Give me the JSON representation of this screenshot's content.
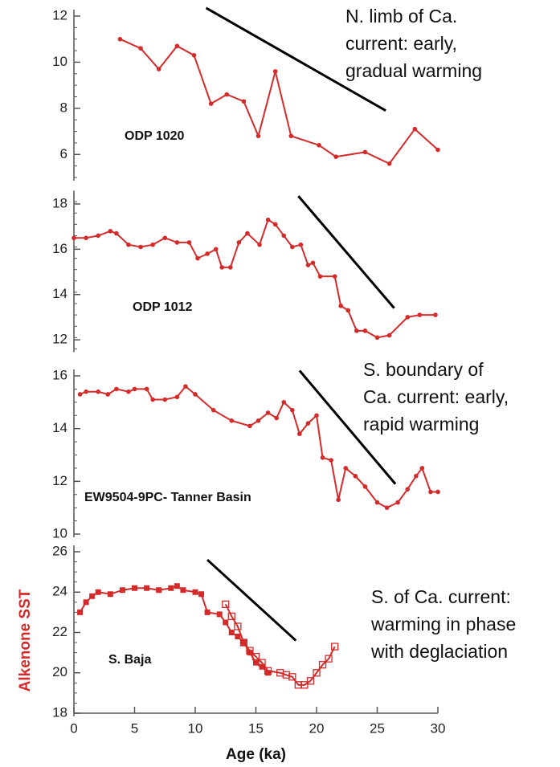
{
  "chart_data": [
    {
      "type": "line",
      "label": "ODP 1020",
      "annotation": [
        "N. limb of Ca.",
        "current: early,",
        "gradual warming"
      ],
      "xlim": [
        0,
        30
      ],
      "ylim": [
        5,
        12
      ],
      "yticks": [
        6,
        8,
        10,
        12
      ],
      "series": [
        {
          "color": "#d42a2a",
          "marker": "circle",
          "x": [
            3.8,
            5.5,
            7.0,
            8.5,
            9.9,
            11.3,
            12.6,
            14.0,
            15.2,
            16.6,
            17.9,
            20.2,
            21.6,
            24.0,
            26.0,
            28.1,
            30
          ],
          "values": [
            11.0,
            10.6,
            9.7,
            10.7,
            10.3,
            8.2,
            8.6,
            8.3,
            6.8,
            9.6,
            6.8,
            6.4,
            5.9,
            6.1,
            5.6,
            7.1,
            6.2
          ]
        }
      ],
      "trend_line": {
        "color": "#000000",
        "x": [
          10.9,
          25.7
        ],
        "values": [
          12.35,
          7.9
        ]
      }
    },
    {
      "type": "line",
      "label": "ODP 1012",
      "xlim": [
        0,
        30
      ],
      "ylim": [
        11.6,
        18.3
      ],
      "yticks": [
        12,
        14,
        16,
        18
      ],
      "series": [
        {
          "color": "#d42a2a",
          "marker": "circle",
          "x": [
            0,
            1,
            2,
            3,
            3.5,
            4.5,
            5.5,
            6.5,
            7.5,
            8.5,
            9.5,
            10.2,
            11,
            11.7,
            12.2,
            12.9,
            13.6,
            14.3,
            15.3,
            16,
            16.6,
            17.3,
            18,
            18.7,
            19.3,
            19.7,
            20.3,
            21.5,
            22,
            22.6,
            23.3,
            24,
            25,
            26,
            27.5,
            28.5,
            29.8
          ],
          "values": [
            16.5,
            16.5,
            16.6,
            16.8,
            16.7,
            16.2,
            16.1,
            16.2,
            16.5,
            16.3,
            16.3,
            15.6,
            15.8,
            16.0,
            15.2,
            15.2,
            16.3,
            16.7,
            16.2,
            17.3,
            17.1,
            16.6,
            16.1,
            16.2,
            15.3,
            15.4,
            14.8,
            14.8,
            13.5,
            13.3,
            12.4,
            12.4,
            12.1,
            12.2,
            13.0,
            13.1,
            13.1
          ]
        }
      ],
      "trend_line": {
        "color": "#000000",
        "x": [
          18.5,
          26.4
        ],
        "values": [
          18.35,
          13.4
        ]
      }
    },
    {
      "type": "line",
      "label": "EW9504-9PC- Tanner Basin",
      "annotation": [
        "S. boundary of",
        "Ca. current: early,",
        "rapid warming"
      ],
      "xlim": [
        0,
        30
      ],
      "ylim": [
        10,
        16
      ],
      "yticks": [
        10,
        12,
        14,
        16
      ],
      "series": [
        {
          "color": "#d42a2a",
          "marker": "circle",
          "x": [
            0.5,
            1,
            2,
            2.8,
            3.5,
            4.5,
            5,
            6,
            6.5,
            7.5,
            8.5,
            9.2,
            10,
            11.5,
            13,
            14.5,
            15.2,
            16,
            16.7,
            17.3,
            18,
            18.6,
            19.3,
            20,
            20.5,
            21.2,
            21.8,
            22.4,
            23.2,
            24,
            25,
            25.8,
            26.7,
            27.5,
            28.2,
            28.7,
            29.4,
            30
          ],
          "values": [
            15.3,
            15.4,
            15.4,
            15.3,
            15.5,
            15.4,
            15.5,
            15.5,
            15.1,
            15.1,
            15.2,
            15.6,
            15.3,
            14.7,
            14.3,
            14.1,
            14.3,
            14.6,
            14.4,
            15.0,
            14.7,
            13.8,
            14.2,
            14.5,
            12.9,
            12.8,
            11.3,
            12.5,
            12.2,
            11.8,
            11.2,
            11.0,
            11.2,
            11.7,
            12.2,
            12.5,
            11.6,
            11.6
          ]
        }
      ],
      "trend_line": {
        "color": "#000000",
        "x": [
          18.6,
          26.5
        ],
        "values": [
          16.2,
          11.9
        ]
      }
    },
    {
      "type": "line",
      "label": "S. Baja",
      "ylabel": "Alkenone SST",
      "xlabel": "Age (ka)",
      "annotation": [
        "S. of Ca. current:",
        "warming in phase",
        "with deglaciation"
      ],
      "xlim": [
        0,
        30
      ],
      "xticks": [
        0,
        5,
        10,
        15,
        20,
        25,
        30
      ],
      "ylim": [
        18,
        26
      ],
      "yticks": [
        18,
        20,
        22,
        24,
        26
      ],
      "series": [
        {
          "color": "#d42a2a",
          "marker": "square",
          "x": [
            0.5,
            1,
            1.5,
            2,
            3,
            4,
            5,
            6,
            7,
            8,
            8.5,
            9,
            10,
            10.5,
            11,
            12,
            12.5,
            13,
            13.5,
            14,
            14.5,
            15,
            15.5,
            16
          ],
          "values": [
            23.0,
            23.5,
            23.8,
            24.0,
            23.9,
            24.1,
            24.2,
            24.2,
            24.1,
            24.2,
            24.3,
            24.1,
            24.0,
            23.9,
            23.0,
            22.9,
            22.5,
            22.0,
            21.8,
            21.5,
            21.0,
            20.5,
            20.3,
            20.0
          ]
        },
        {
          "color": "#d42a2a",
          "marker": "square-open",
          "x": [
            12.5,
            13,
            13.5,
            14,
            14.5,
            15,
            15.5,
            16,
            17,
            17.5,
            18,
            18.5,
            19,
            19.5,
            20,
            20.5,
            21,
            21.5
          ],
          "values": [
            23.4,
            22.8,
            22.3,
            21.5,
            21.1,
            20.8,
            20.5,
            20.1,
            20.0,
            19.9,
            19.8,
            19.4,
            19.4,
            19.6,
            20.0,
            20.4,
            20.7,
            21.3
          ]
        }
      ],
      "trend_line": {
        "color": "#000000",
        "x": [
          11,
          18.3
        ],
        "values": [
          25.6,
          21.6
        ]
      }
    }
  ]
}
